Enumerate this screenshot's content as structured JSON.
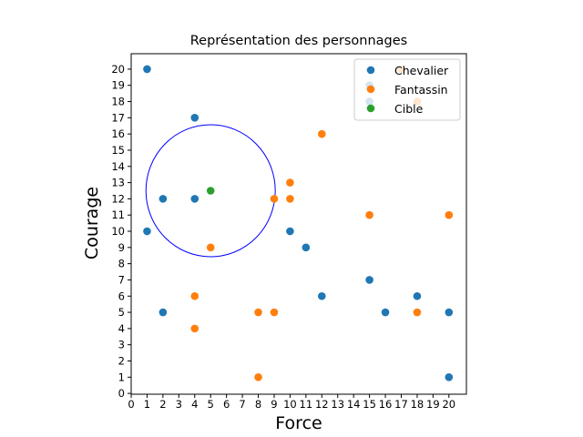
{
  "chart_data": {
    "type": "scatter",
    "title": "Représentation des personnages",
    "xlabel": "Force",
    "ylabel": "Courage",
    "xlim": [
      0,
      21.1
    ],
    "ylim": [
      -0.05,
      20.95
    ],
    "xticks": [
      0,
      1,
      2,
      3,
      4,
      5,
      6,
      7,
      8,
      9,
      10,
      11,
      12,
      13,
      14,
      15,
      16,
      17,
      18,
      19,
      20
    ],
    "yticks": [
      0,
      1,
      2,
      3,
      4,
      5,
      6,
      7,
      8,
      9,
      10,
      11,
      12,
      13,
      14,
      15,
      16,
      17,
      18,
      19,
      20
    ],
    "grid": false,
    "legend_position": "top-right",
    "series": [
      {
        "name": "Chevalier",
        "color": "#1f77b4",
        "points": [
          [
            1,
            20
          ],
          [
            4,
            17
          ],
          [
            2,
            12
          ],
          [
            4,
            12
          ],
          [
            1,
            10
          ],
          [
            10,
            10
          ],
          [
            11,
            9
          ],
          [
            15,
            7
          ],
          [
            12,
            6
          ],
          [
            18,
            6
          ],
          [
            2,
            5
          ],
          [
            16,
            5
          ],
          [
            20,
            5
          ],
          [
            20,
            1
          ],
          [
            15,
            19
          ],
          [
            15,
            18
          ]
        ]
      },
      {
        "name": "Fantassin",
        "color": "#ff7f0e",
        "points": [
          [
            17,
            20
          ],
          [
            12,
            16
          ],
          [
            10,
            13
          ],
          [
            9,
            12
          ],
          [
            10,
            12
          ],
          [
            15,
            11
          ],
          [
            20,
            11
          ],
          [
            5,
            9
          ],
          [
            4,
            6
          ],
          [
            8,
            5
          ],
          [
            9,
            5
          ],
          [
            18,
            5
          ],
          [
            4,
            4
          ],
          [
            8,
            1
          ],
          [
            18,
            18
          ]
        ]
      },
      {
        "name": "Cible",
        "color": "#2ca02c",
        "points": [
          [
            5,
            12.5
          ]
        ]
      }
    ],
    "circle": {
      "center": [
        5,
        12.5
      ],
      "radius": 4.07,
      "color": "#0000ff"
    }
  }
}
